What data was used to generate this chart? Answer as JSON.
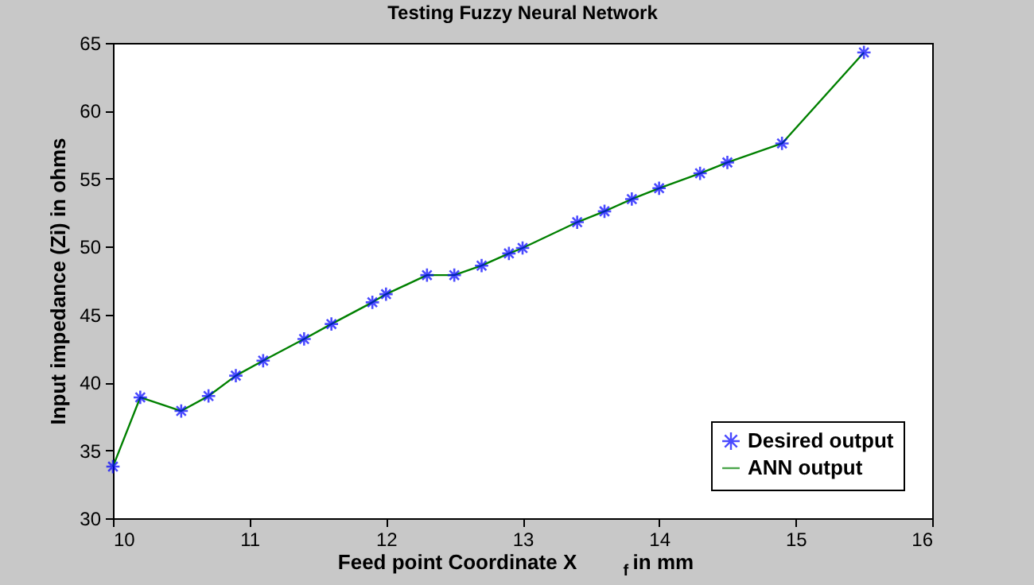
{
  "chart_data": {
    "type": "line",
    "title": "Testing Fuzzy Neural Network",
    "xlabel": "Feed point Coordinate X$_{f}$ in mm",
    "ylabel": "Input impedance (Zi) in ohms",
    "xlim": [
      10,
      16
    ],
    "xticks": [
      10,
      11,
      12,
      13,
      14,
      15,
      16
    ],
    "ylim": [
      30,
      65
    ],
    "yticks": [
      30,
      35,
      40,
      45,
      50,
      55,
      60,
      65
    ],
    "x": [
      10,
      10.2,
      10.5,
      10.7,
      10.9,
      11.1,
      11.4,
      11.6,
      11.9,
      12.0,
      12.3,
      12.5,
      12.7,
      12.9,
      13.0,
      13.4,
      13.6,
      13.8,
      14.0,
      14.3,
      14.5,
      14.9,
      15.5
    ],
    "series": [
      {
        "name": "Desired output",
        "type": "scatter",
        "marker": "cross",
        "color": "#0000ff",
        "values": [
          33.8,
          38.9,
          37.9,
          39.0,
          40.5,
          41.6,
          43.2,
          44.3,
          45.9,
          46.5,
          47.9,
          47.9,
          48.6,
          49.5,
          49.9,
          51.8,
          52.6,
          53.5,
          54.3,
          55.4,
          56.2,
          57.6,
          64.3
        ]
      },
      {
        "name": "ANN output",
        "marker": "none",
        "line_style": "solid",
        "color": "#008000",
        "values": [
          33.8,
          38.9,
          37.9,
          39.0,
          40.5,
          41.6,
          43.2,
          44.3,
          45.9,
          46.5,
          47.9,
          47.9,
          48.6,
          49.5,
          49.9,
          51.8,
          52.6,
          53.5,
          54.3,
          55.4,
          56.2,
          57.6,
          64.3
        ]
      }
    ],
    "grid": false,
    "legend": "bottom right"
  }
}
